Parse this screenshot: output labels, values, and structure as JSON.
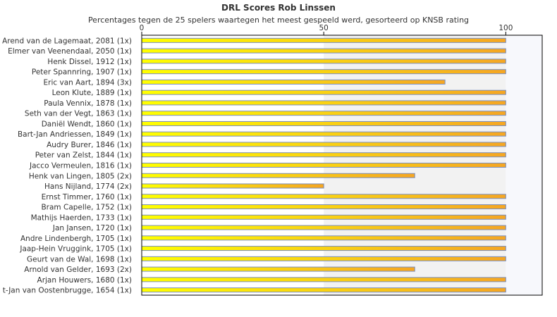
{
  "chart_data": {
    "type": "bar",
    "orientation": "horizontal",
    "title": "DRL Scores Rob Linssen",
    "subtitle": "Percentages tegen de 25 spelers waartegen het meest gespeeld werd, gesorteerd op KNSB rating",
    "xlim": [
      0,
      110
    ],
    "xticks": [
      0,
      50,
      100
    ],
    "categories": [
      "Arend van de Lagemaat, 2081 (1x)",
      "Elmer van Veenendaal, 2050 (1x)",
      "Henk Dissel, 1912 (1x)",
      "Peter Spannring, 1907 (1x)",
      "Eric van Aart, 1894 (3x)",
      "Leon Klute, 1889 (1x)",
      "Paula Vennix, 1878 (1x)",
      "Seth van der Vegt, 1863 (1x)",
      "Daniël Wendt, 1860 (1x)",
      "Bart-Jan Andriessen, 1849 (1x)",
      "Audry Burer, 1846 (1x)",
      "Peter van Zelst, 1844 (1x)",
      "Jacco Vermeulen, 1816 (1x)",
      "Henk van Lingen, 1805 (2x)",
      "Hans Nijland, 1774 (2x)",
      "Ernst Timmer, 1760 (1x)",
      "Bram Capelle, 1752 (1x)",
      "Mathijs Haerden, 1733 (1x)",
      "Jan Jansen, 1720 (1x)",
      "Andre Lindenbergh, 1705 (1x)",
      "Jaap-Hein Vruggink, 1705 (1x)",
      "Geurt van de Wal, 1698 (1x)",
      "Arnold van Gelder, 1693 (2x)",
      "Arjan Houwers, 1680 (1x)",
      "t-Jan van Oostenbrugge, 1654 (1x)"
    ],
    "values": [
      100,
      100,
      100,
      100,
      83.3,
      100,
      100,
      100,
      100,
      100,
      100,
      100,
      100,
      75,
      50,
      100,
      100,
      100,
      100,
      100,
      100,
      100,
      75,
      100,
      100
    ],
    "grid": false,
    "legend": "none",
    "colors": {
      "bar_start": "#ffff00",
      "bar_end": "#f5a623",
      "bar_stroke": "#7a8fc0",
      "band_light": "#f2f2f2",
      "band_dark": "#f7f8fc",
      "axis": "#000000",
      "text": "#333333"
    }
  }
}
